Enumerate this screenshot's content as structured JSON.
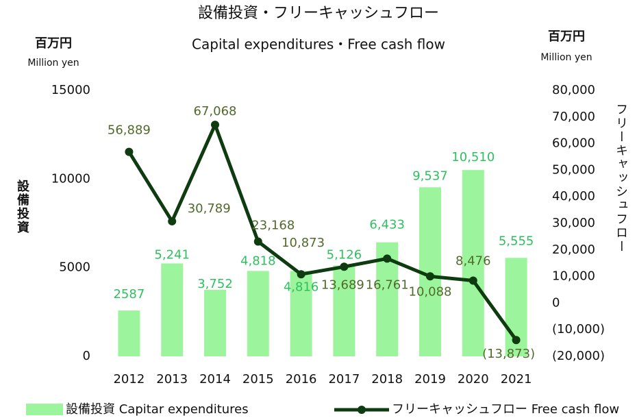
{
  "chart_data": {
    "type": "bar",
    "title": "設備投資・フリーキャッシュフロー",
    "subtitle": "Capital expenditures・Free cash flow",
    "y_unit": "百万円",
    "y_unit_en": "Million yen",
    "y2_unit": "百万円",
    "y2_unit_en": "Million yen",
    "ylabel": "設備投資",
    "y2label": "フリーキャッシュフロー",
    "categories": [
      "2012",
      "2013",
      "2014",
      "2015",
      "2016",
      "2017",
      "2018",
      "2019",
      "2020",
      "2021"
    ],
    "series": [
      {
        "name": "設備投資 Capitar expenditures",
        "type": "bar",
        "color": "#9cf59c",
        "label_color": "#2fbf5f",
        "values": [
          2587,
          5241,
          3752,
          4818,
          4816,
          5126,
          6433,
          9537,
          10510,
          5555
        ],
        "value_labels": [
          "2587",
          "5,241",
          "3,752",
          "4,818",
          "4,816",
          "5,126",
          "6,433",
          "9,537",
          "10,510",
          "5,555"
        ]
      },
      {
        "name": "フリーキャッシュフロー Free cash flow",
        "type": "line",
        "axis": "y2",
        "color": "#0e3b10",
        "label_color": "#4f6a2a",
        "values": [
          56889,
          30789,
          67068,
          23168,
          10873,
          13689,
          16761,
          10088,
          8476,
          -13873
        ],
        "value_labels": [
          "56,889",
          "30,789",
          "67,068",
          "23,168",
          "10,873",
          "13,689",
          "16,761",
          "10,088",
          "8,476",
          "(13,873)"
        ]
      }
    ],
    "ylim": [
      0,
      15000
    ],
    "yticks": [
      0,
      5000,
      10000,
      15000
    ],
    "y2lim": [
      -20000,
      80000
    ],
    "y2ticks": [
      {
        "value": -20000,
        "label": "(20,000)"
      },
      {
        "value": -10000,
        "label": "(10,000)"
      },
      0,
      {
        "value": 10000,
        "label": "10,000"
      },
      {
        "value": 20000,
        "label": "20,000"
      },
      {
        "value": 30000,
        "label": "30,000"
      },
      {
        "value": 40000,
        "label": "40,000"
      },
      {
        "value": 50000,
        "label": "50,000"
      },
      {
        "value": 60000,
        "label": "60,000"
      },
      {
        "value": 70000,
        "label": "70,000"
      },
      {
        "value": 80000,
        "label": "80,000"
      }
    ],
    "grid": false
  }
}
